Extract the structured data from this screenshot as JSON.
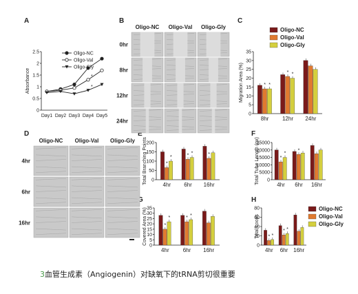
{
  "colors": {
    "nc": "#7a1a1a",
    "val": "#e07a30",
    "gly": "#d4cf3e",
    "img": "#c9c9c9",
    "imgDark": "#8f8f8f"
  },
  "panels": {
    "A": "A",
    "B": "B",
    "C": "C",
    "D": "D",
    "E": "E",
    "F": "F",
    "G": "G",
    "H": "H"
  },
  "groups": [
    "Oligo-NC",
    "Oligo-Val",
    "Oligo-Gly"
  ],
  "micrograph_B": {
    "columns": [
      "Oligo-NC",
      "Oligo-Val",
      "Oligo-Gly"
    ],
    "rows": [
      "0hr",
      "8hr",
      "12hr",
      "24hr"
    ]
  },
  "micrograph_D": {
    "columns": [
      "Oligo-NC",
      "Oligo-Val",
      "Oligo-Gly"
    ],
    "rows": [
      "4hr",
      "6hr",
      "16hr"
    ]
  },
  "caption": {
    "number": "3",
    "text": "血管生成素（Angiogenin）对缺氧下的tRNA剪切很重要"
  },
  "chart_data": [
    {
      "id": "A",
      "type": "line",
      "x": [
        "Day1",
        "Day2",
        "Day3",
        "Day4",
        "Day5"
      ],
      "ylabel": "Absorbance",
      "ylim": [
        0,
        2.5
      ],
      "yticks": [
        "0",
        "0.5",
        "1",
        "1.5",
        "2",
        "2.5"
      ],
      "legend": "top-left",
      "series": [
        {
          "name": "Oligo-NC",
          "values": [
            0.8,
            0.9,
            1.1,
            1.8,
            2.2
          ]
        },
        {
          "name": "Oligo-Val",
          "values": [
            0.8,
            0.85,
            0.95,
            1.3,
            1.7
          ]
        },
        {
          "name": "Oligo-Gly",
          "values": [
            0.75,
            0.8,
            0.7,
            0.85,
            1.1
          ]
        }
      ],
      "annotations": [
        "*",
        "*"
      ]
    },
    {
      "id": "C",
      "type": "bar",
      "categories": [
        "8hr",
        "12hr",
        "24hr"
      ],
      "ylabel": "Migration Area (%)",
      "ylim": [
        0,
        35
      ],
      "yticks": [
        "0",
        "5",
        "10",
        "15",
        "20",
        "25",
        "30",
        "35"
      ],
      "legend": "top-left",
      "series": [
        {
          "name": "Oligo-NC",
          "values": [
            16,
            22,
            30
          ]
        },
        {
          "name": "Oligo-Val",
          "values": [
            14,
            21,
            27
          ]
        },
        {
          "name": "Oligo-Gly",
          "values": [
            14,
            20,
            25
          ]
        }
      ],
      "annotations": [
        "*",
        "*",
        "*",
        "*"
      ]
    },
    {
      "id": "E",
      "type": "bar",
      "categories": [
        "4hr",
        "6hr",
        "16hr"
      ],
      "ylabel": "Total Branching Points",
      "ylim": [
        0,
        200
      ],
      "yticks": [
        "0",
        "50",
        "100",
        "150",
        "200"
      ],
      "series": [
        {
          "name": "Oligo-NC",
          "values": [
            150,
            165,
            180
          ]
        },
        {
          "name": "Oligo-Val",
          "values": [
            65,
            110,
            115
          ]
        },
        {
          "name": "Oligo-Gly",
          "values": [
            100,
            120,
            145
          ]
        }
      ],
      "annotations": [
        "*",
        "*",
        "*",
        "*",
        "*"
      ]
    },
    {
      "id": "F",
      "type": "bar",
      "categories": [
        "4hr",
        "6hr",
        "16hr"
      ],
      "ylabel": "Total Tube Length (px)",
      "ylim": [
        0,
        25000
      ],
      "yticks": [
        "0",
        "5000",
        "10000",
        "15000",
        "20000",
        "25000"
      ],
      "series": [
        {
          "name": "Oligo-NC",
          "values": [
            20000,
            19000,
            23000
          ]
        },
        {
          "name": "Oligo-Val",
          "values": [
            12000,
            17000,
            17500
          ]
        },
        {
          "name": "Oligo-Gly",
          "values": [
            15000,
            18000,
            20000
          ]
        }
      ],
      "annotations": [
        "*",
        "*",
        "*"
      ]
    },
    {
      "id": "G",
      "type": "bar",
      "categories": [
        "4hr",
        "6hr",
        "16hr"
      ],
      "ylabel": "Covered Area (%)",
      "ylim": [
        0,
        35
      ],
      "yticks": [
        "0",
        "5",
        "10",
        "15",
        "20",
        "25",
        "30",
        "35"
      ],
      "series": [
        {
          "name": "Oligo-NC",
          "values": [
            28,
            28,
            32
          ]
        },
        {
          "name": "Oligo-Val",
          "values": [
            15,
            22,
            21
          ]
        },
        {
          "name": "Oligo-Gly",
          "values": [
            22,
            24,
            27
          ]
        }
      ],
      "annotations": [
        "*",
        "*",
        "*",
        "*"
      ]
    },
    {
      "id": "H",
      "type": "bar",
      "categories": [
        "4hr",
        "6hr",
        "16hr"
      ],
      "ylabel": "Total Loops",
      "ylim": [
        0,
        80
      ],
      "yticks": [
        "0",
        "20",
        "40",
        "60",
        "80"
      ],
      "legend": "right",
      "series": [
        {
          "name": "Oligo-NC",
          "values": [
            32,
            42,
            65
          ]
        },
        {
          "name": "Oligo-Val",
          "values": [
            10,
            22,
            30
          ]
        },
        {
          "name": "Oligo-Gly",
          "values": [
            12,
            25,
            38
          ]
        }
      ],
      "annotations": [
        "*",
        "*",
        "*",
        "*"
      ]
    }
  ]
}
